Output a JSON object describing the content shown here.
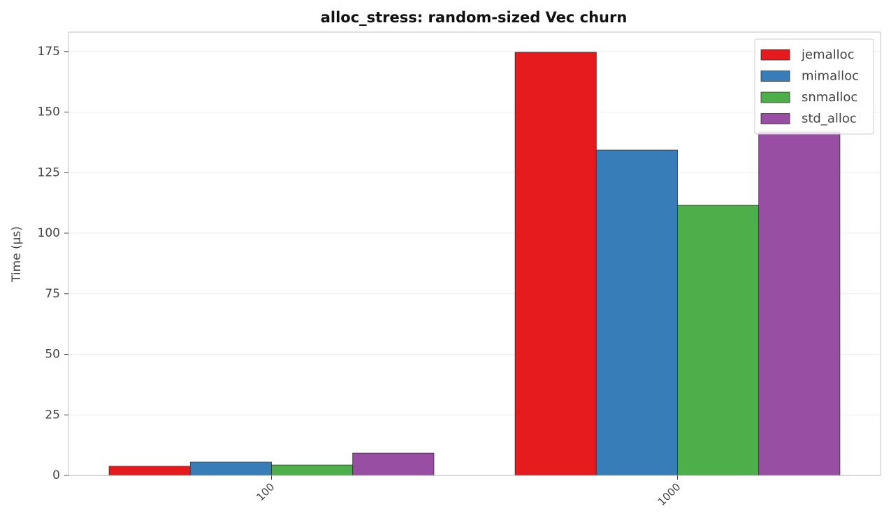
{
  "chart_data": {
    "type": "bar",
    "title": "alloc_stress: random-sized Vec churn",
    "y_label": "Time (µs)",
    "categories": [
      "100",
      "1000"
    ],
    "series": [
      {
        "name": "jemalloc",
        "color": "#e41a1c",
        "values": [
          3.8,
          174.7
        ]
      },
      {
        "name": "mimalloc",
        "color": "#377eb8",
        "values": [
          5.5,
          134.3
        ]
      },
      {
        "name": "snmalloc",
        "color": "#4daf4a",
        "values": [
          4.3,
          111.5
        ]
      },
      {
        "name": "std_alloc",
        "color": "#984ea3",
        "values": [
          9.2,
          141.8
        ]
      }
    ],
    "ylim": [
      0,
      183
    ],
    "yticks": [
      0,
      25,
      50,
      75,
      100,
      125,
      150,
      175
    ],
    "grid": true,
    "legend": "upper-right"
  }
}
